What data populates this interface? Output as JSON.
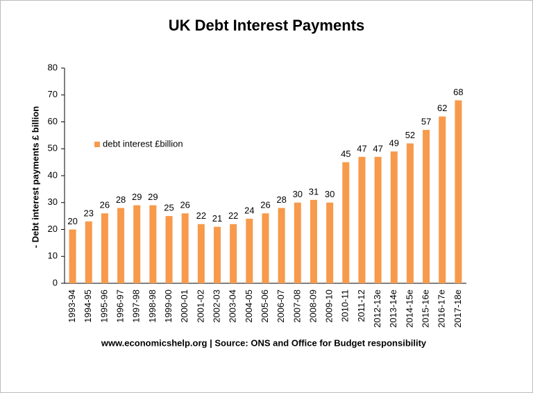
{
  "chart_data": {
    "type": "bar",
    "title": "UK Debt Interest Payments",
    "y_label": "- Debt interest payments £ billion",
    "source": "www.economicshelp.org | Source: ONS and Office for Budget responsibility",
    "categories": [
      "1993-94",
      "1994-95",
      "1995-96",
      "1996-97",
      "1997-98",
      "1998-98",
      "1999-00",
      "2000-01",
      "2001-02",
      "2002-03",
      "2003-04",
      "2004-05",
      "2005-06",
      "2006-07",
      "2007-08",
      "2008-09",
      "2009-10",
      "2010-11",
      "2011-12",
      "2012-13e",
      "2013-14e",
      "2014-15e",
      "2015-16e",
      "2016-17e",
      "2017-18e"
    ],
    "series": [
      {
        "name": "debt interest £billion",
        "color": "#f79a4b",
        "values": [
          20,
          23,
          26,
          28,
          29,
          29,
          25,
          26,
          22,
          21,
          22,
          24,
          26,
          28,
          30,
          31,
          30,
          45,
          47,
          47,
          49,
          52,
          57,
          62,
          68
        ]
      }
    ],
    "ylim": [
      0,
      80
    ],
    "yticks": [
      0,
      10,
      20,
      30,
      40,
      50,
      60,
      70,
      80
    ],
    "grid": false,
    "legend": "center-left"
  }
}
